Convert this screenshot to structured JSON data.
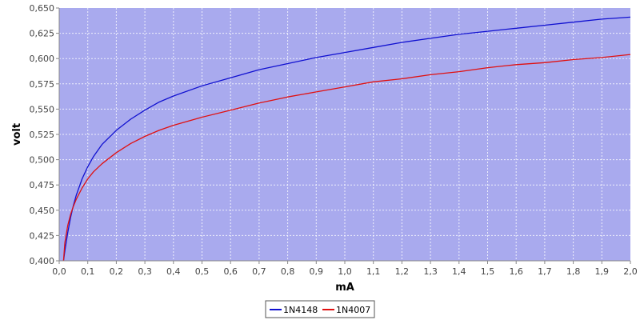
{
  "chart_data": {
    "type": "line",
    "title": "",
    "xlabel": "mA",
    "ylabel": "volt",
    "xlim": [
      0.0,
      2.0
    ],
    "ylim": [
      0.4,
      0.65
    ],
    "grid": true,
    "legend_position": "bottom-center",
    "background_color": "#a9aaee",
    "x_ticks": [
      "0,0",
      "0,1",
      "0,2",
      "0,3",
      "0,4",
      "0,5",
      "0,6",
      "0,7",
      "0,8",
      "0,9",
      "1,0",
      "1,1",
      "1,2",
      "1,3",
      "1,4",
      "1,5",
      "1,6",
      "1,7",
      "1,8",
      "1,9",
      "2,0"
    ],
    "y_ticks": [
      "0,400",
      "0,425",
      "0,450",
      "0,475",
      "0,500",
      "0,525",
      "0,550",
      "0,575",
      "0,600",
      "0,625",
      "0,650"
    ],
    "series": [
      {
        "name": "1N4148",
        "color": "#1010d0",
        "x": [
          0.015,
          0.02,
          0.03,
          0.04,
          0.05,
          0.06,
          0.08,
          0.1,
          0.12,
          0.15,
          0.2,
          0.25,
          0.3,
          0.35,
          0.4,
          0.5,
          0.6,
          0.7,
          0.8,
          0.9,
          1.0,
          1.1,
          1.2,
          1.3,
          1.4,
          1.5,
          1.6,
          1.7,
          1.8,
          1.9,
          2.0
        ],
        "y": [
          0.398,
          0.41,
          0.428,
          0.443,
          0.455,
          0.465,
          0.481,
          0.493,
          0.503,
          0.515,
          0.529,
          0.54,
          0.549,
          0.557,
          0.563,
          0.573,
          0.581,
          0.589,
          0.595,
          0.601,
          0.606,
          0.611,
          0.616,
          0.62,
          0.624,
          0.627,
          0.63,
          0.633,
          0.636,
          0.639,
          0.641
        ]
      },
      {
        "name": "1N4007",
        "color": "#e01010",
        "x": [
          0.015,
          0.02,
          0.03,
          0.04,
          0.05,
          0.06,
          0.08,
          0.1,
          0.12,
          0.15,
          0.2,
          0.25,
          0.3,
          0.35,
          0.4,
          0.5,
          0.6,
          0.7,
          0.8,
          0.9,
          1.0,
          1.1,
          1.2,
          1.3,
          1.4,
          1.5,
          1.6,
          1.7,
          1.8,
          1.9,
          2.0
        ],
        "y": [
          0.398,
          0.418,
          0.435,
          0.446,
          0.454,
          0.461,
          0.472,
          0.481,
          0.488,
          0.496,
          0.507,
          0.516,
          0.523,
          0.529,
          0.534,
          0.542,
          0.549,
          0.556,
          0.562,
          0.567,
          0.572,
          0.577,
          0.58,
          0.584,
          0.587,
          0.591,
          0.594,
          0.596,
          0.599,
          0.601,
          0.604
        ]
      }
    ]
  }
}
